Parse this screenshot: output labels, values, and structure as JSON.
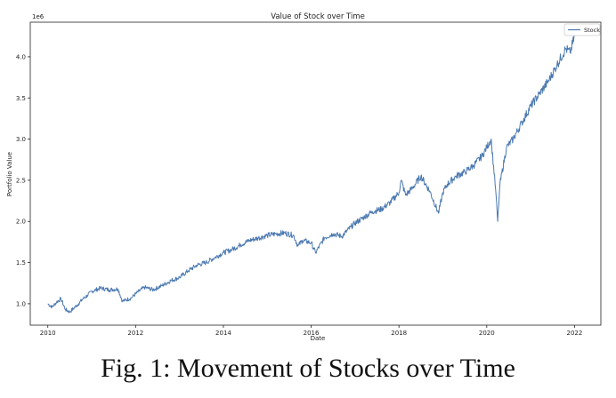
{
  "caption": "Fig. 1: Movement of Stocks over Time",
  "chart_data": {
    "type": "line",
    "title": "Value of Stock over Time",
    "xlabel": "Date",
    "ylabel": "Portfolio Value",
    "y_scale_label": "1e6",
    "xlim": [
      2009.6,
      2022.6
    ],
    "ylim": [
      0.74,
      4.42
    ],
    "xticks": [
      2010,
      2012,
      2014,
      2016,
      2018,
      2020,
      2022
    ],
    "yticks": [
      1.0,
      1.5,
      2.0,
      2.5,
      3.0,
      3.5,
      4.0
    ],
    "ytick_labels": [
      "1.0",
      "1.5",
      "2.0",
      "2.5",
      "3.0",
      "3.5",
      "4.0"
    ],
    "grid": false,
    "legend": {
      "position": "top-right",
      "entries": [
        "Stock"
      ]
    },
    "colors": {
      "line": "#4a78b0"
    },
    "series": [
      {
        "name": "Stock",
        "x": [
          2010.0,
          2010.1,
          2010.2,
          2010.3,
          2010.4,
          2010.5,
          2010.6,
          2010.7,
          2010.8,
          2010.9,
          2011.0,
          2011.2,
          2011.4,
          2011.6,
          2011.7,
          2011.9,
          2012.0,
          2012.2,
          2012.4,
          2012.6,
          2012.8,
          2013.0,
          2013.2,
          2013.4,
          2013.6,
          2013.8,
          2014.0,
          2014.2,
          2014.4,
          2014.6,
          2014.8,
          2015.0,
          2015.2,
          2015.4,
          2015.6,
          2015.7,
          2015.8,
          2016.0,
          2016.1,
          2016.3,
          2016.5,
          2016.7,
          2016.9,
          2017.0,
          2017.2,
          2017.4,
          2017.6,
          2017.8,
          2018.0,
          2018.05,
          2018.15,
          2018.3,
          2018.5,
          2018.7,
          2018.9,
          2019.0,
          2019.1,
          2019.3,
          2019.5,
          2019.7,
          2019.9,
          2020.0,
          2020.1,
          2020.2,
          2020.25,
          2020.3,
          2020.45,
          2020.6,
          2020.8,
          2021.0,
          2021.2,
          2021.4,
          2021.6,
          2021.8,
          2021.9,
          2022.0
        ],
        "values": [
          1.0,
          0.96,
          1.02,
          1.06,
          0.93,
          0.9,
          0.95,
          1.0,
          1.06,
          1.1,
          1.15,
          1.19,
          1.17,
          1.18,
          1.03,
          1.07,
          1.12,
          1.2,
          1.17,
          1.22,
          1.28,
          1.32,
          1.4,
          1.47,
          1.5,
          1.56,
          1.62,
          1.66,
          1.72,
          1.77,
          1.8,
          1.83,
          1.85,
          1.86,
          1.83,
          1.7,
          1.77,
          1.74,
          1.62,
          1.8,
          1.85,
          1.82,
          1.93,
          1.98,
          2.05,
          2.12,
          2.15,
          2.23,
          2.35,
          2.5,
          2.32,
          2.4,
          2.55,
          2.37,
          2.1,
          2.35,
          2.45,
          2.55,
          2.6,
          2.68,
          2.8,
          2.9,
          3.0,
          2.4,
          2.0,
          2.45,
          2.9,
          3.0,
          3.2,
          3.4,
          3.55,
          3.7,
          3.9,
          4.1,
          4.05,
          4.25
        ]
      }
    ]
  }
}
